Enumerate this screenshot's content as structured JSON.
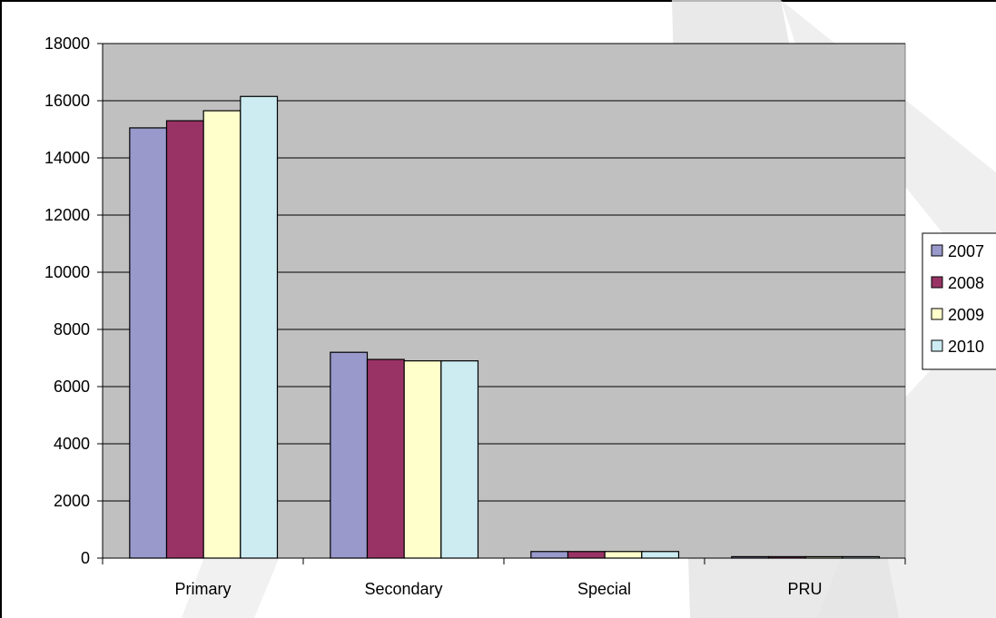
{
  "chart_data": {
    "type": "bar",
    "title": "",
    "xlabel": "",
    "ylabel": "",
    "categories": [
      "Primary",
      "Secondary",
      "Special",
      "PRU"
    ],
    "series": [
      {
        "name": "2007",
        "color": "#9999cc",
        "values": [
          15050,
          7200,
          230,
          50
        ]
      },
      {
        "name": "2008",
        "color": "#993366",
        "values": [
          15300,
          6950,
          230,
          50
        ]
      },
      {
        "name": "2009",
        "color": "#ffffcc",
        "values": [
          15650,
          6900,
          230,
          50
        ]
      },
      {
        "name": "2010",
        "color": "#ccecf2",
        "values": [
          16150,
          6900,
          230,
          50
        ]
      }
    ],
    "ylim": [
      0,
      18000
    ],
    "yticks": [
      0,
      2000,
      4000,
      6000,
      8000,
      10000,
      12000,
      14000,
      16000,
      18000
    ],
    "grid": true,
    "legend_position": "right",
    "plot_background": "#c0c0c0"
  }
}
